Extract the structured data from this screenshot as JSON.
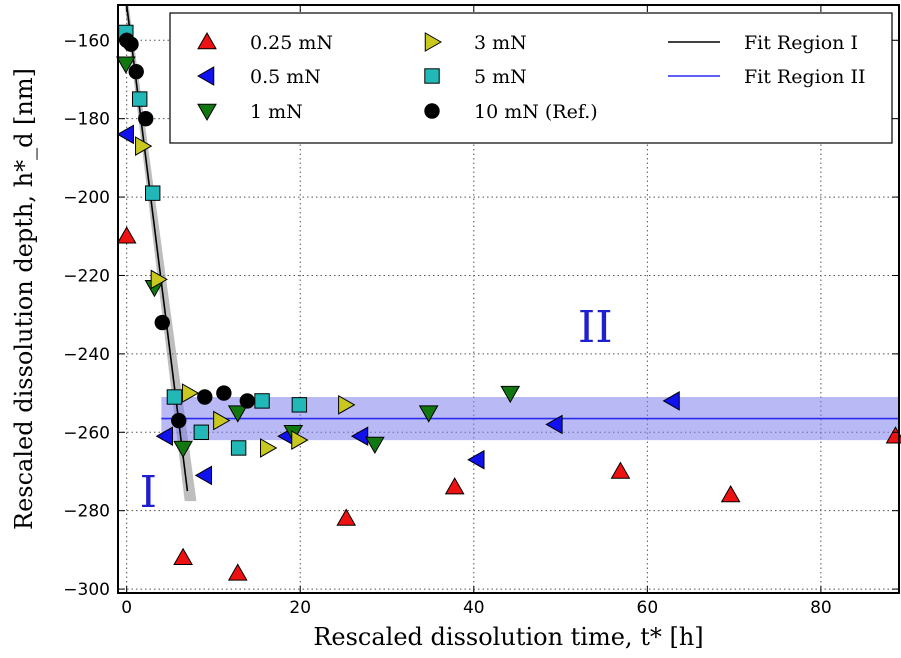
{
  "chart_data": {
    "type": "scatter",
    "xlabel": "Rescaled dissolution time, t* [h]",
    "ylabel": "Rescaled dissolution depth, h*_d [nm]",
    "xlim": [
      -1,
      89
    ],
    "ylim": [
      -301,
      -151
    ],
    "x_ticks": [
      0,
      20,
      40,
      60,
      80
    ],
    "y_ticks": [
      -300,
      -280,
      -260,
      -240,
      -220,
      -200,
      -180,
      -160
    ],
    "grid": true,
    "legend_position": "top",
    "annotations": [
      {
        "text": "I",
        "x": 2.5,
        "y": -279
      },
      {
        "text": "II",
        "x": 54,
        "y": -237
      }
    ],
    "series": [
      {
        "name": "0.25 mN",
        "marker": "triangle-up",
        "color": "#ee1111",
        "points": [
          [
            0,
            -210
          ],
          [
            6.5,
            -292
          ],
          [
            12.8,
            -296
          ],
          [
            25.3,
            -282
          ],
          [
            37.8,
            -274
          ],
          [
            56.9,
            -270
          ],
          [
            69.6,
            -276
          ],
          [
            88.6,
            -261
          ]
        ]
      },
      {
        "name": "0.5 mN",
        "marker": "triangle-left",
        "color": "#1111ee",
        "points": [
          [
            0,
            -184
          ],
          [
            4.5,
            -261
          ],
          [
            9,
            -271
          ],
          [
            18.5,
            -261
          ],
          [
            27,
            -261
          ],
          [
            40.4,
            -267
          ],
          [
            49.4,
            -258
          ],
          [
            62.9,
            -252
          ]
        ]
      },
      {
        "name": "1 mN",
        "marker": "triangle-down",
        "color": "#117711",
        "points": [
          [
            -0.1,
            -166
          ],
          [
            3.2,
            -223
          ],
          [
            6.5,
            -264
          ],
          [
            12.8,
            -255
          ],
          [
            19.2,
            -260
          ],
          [
            28.6,
            -263
          ],
          [
            34.8,
            -255
          ],
          [
            44.2,
            -250
          ]
        ]
      },
      {
        "name": "3 mN",
        "marker": "triangle-right",
        "color": "#c8c81e",
        "points": [
          [
            1.8,
            -187
          ],
          [
            3.6,
            -221
          ],
          [
            7.2,
            -250
          ],
          [
            10.8,
            -257
          ],
          [
            16.2,
            -264
          ],
          [
            19.8,
            -262
          ],
          [
            25.2,
            -253
          ]
        ]
      },
      {
        "name": "5 mN",
        "marker": "square",
        "color": "#22b8b8",
        "points": [
          [
            -0.1,
            -158
          ],
          [
            1.5,
            -175
          ],
          [
            3,
            -199
          ],
          [
            5.5,
            -251
          ],
          [
            8.6,
            -260
          ],
          [
            12.9,
            -264
          ],
          [
            15.6,
            -252
          ],
          [
            19.9,
            -253
          ]
        ]
      },
      {
        "name": "10 mN (Ref.)",
        "marker": "circle",
        "color": "#000000",
        "points": [
          [
            0,
            -160
          ],
          [
            0.5,
            -161
          ],
          [
            1.1,
            -168
          ],
          [
            2.2,
            -180
          ],
          [
            4.1,
            -232
          ],
          [
            6,
            -257
          ],
          [
            9,
            -251
          ],
          [
            11.2,
            -250
          ],
          [
            13.9,
            -252
          ]
        ]
      }
    ],
    "fits": [
      {
        "name": "Fit Region I",
        "color": "#000000",
        "band_color": "#888888",
        "x": [
          0,
          7
        ],
        "y": [
          -151,
          -275
        ],
        "band_halfwidth_top": 2,
        "band_halfwidth_bottom": 9
      },
      {
        "name": "Fit Region II",
        "color": "#2a2af0",
        "band_color": "#8080ee",
        "x": [
          4,
          89
        ],
        "y": [
          -256.5,
          -256.5
        ],
        "band": [
          -262,
          -251
        ]
      }
    ]
  }
}
